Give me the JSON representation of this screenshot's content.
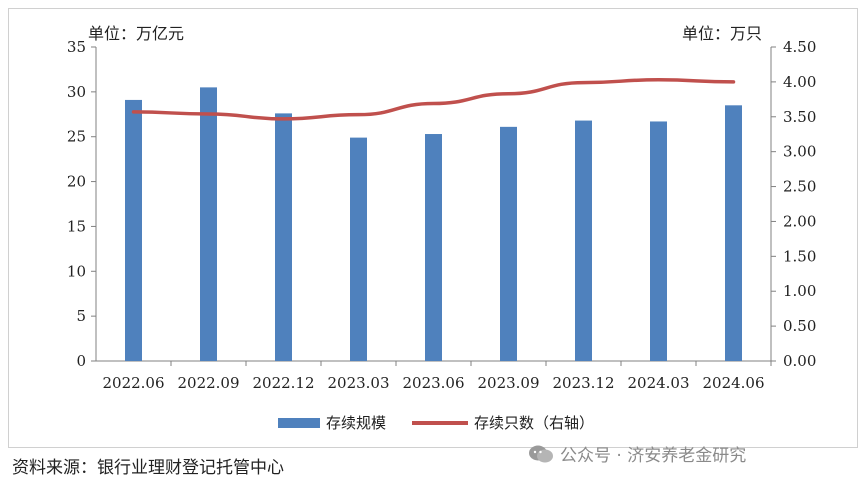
{
  "chart_data": {
    "type": "bar+line",
    "categories": [
      "2022.06",
      "2022.09",
      "2022.12",
      "2023.03",
      "2023.06",
      "2023.09",
      "2023.12",
      "2024.03",
      "2024.06"
    ],
    "series": [
      {
        "name": "存续规模",
        "type": "bar",
        "axis": "left",
        "color": "#4f81bd",
        "values": [
          29.1,
          30.5,
          27.6,
          24.9,
          25.3,
          26.1,
          26.8,
          26.7,
          28.5
        ]
      },
      {
        "name": "存续只数（右轴）",
        "type": "line",
        "axis": "right",
        "color": "#c0504d",
        "values": [
          3.57,
          3.54,
          3.47,
          3.53,
          3.69,
          3.83,
          3.99,
          4.03,
          4.0
        ]
      }
    ],
    "y_left": {
      "label": "单位：万亿元",
      "lim": [
        0,
        35
      ],
      "ticks": [
        "0",
        "5",
        "10",
        "15",
        "20",
        "25",
        "30",
        "35"
      ]
    },
    "y_right": {
      "label": "单位：万只",
      "lim": [
        0,
        4.5
      ],
      "ticks": [
        "0.00",
        "0.50",
        "1.00",
        "1.50",
        "2.00",
        "2.50",
        "3.00",
        "3.50",
        "4.00",
        "4.50"
      ]
    },
    "legend": {
      "position": "bottom",
      "bar_label": "存续规模",
      "line_label": "存续只数（右轴）"
    }
  },
  "source": "资料来源：银行业理财登记托管中心",
  "watermark": "公众号 · 济安养老金研究"
}
